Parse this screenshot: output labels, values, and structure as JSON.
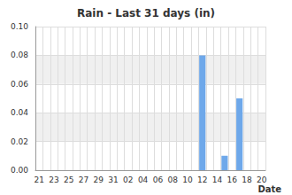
{
  "chart_data": {
    "type": "bar",
    "title": "Rain - Last 31 days (in)",
    "x_label": "Date",
    "categories": [
      "21",
      null,
      "23",
      null,
      "25",
      null,
      "27",
      null,
      "29",
      null,
      "31",
      null,
      "02",
      null,
      "04",
      null,
      "06",
      null,
      "08",
      null,
      "10",
      null,
      "12",
      null,
      "14",
      null,
      "16",
      null,
      "18",
      null,
      "20"
    ],
    "values": [
      0,
      0,
      0,
      0,
      0,
      0,
      0,
      0,
      0,
      0,
      0,
      0,
      0,
      0,
      0,
      0,
      0,
      0,
      0,
      0,
      0,
      0,
      0.08,
      0,
      0,
      0.01,
      0,
      0.05,
      0,
      0,
      0
    ],
    "color": "#6ea8ea",
    "ylim": [
      0,
      0.1
    ],
    "yticks": [
      {
        "value": 0,
        "label": "0.00"
      },
      {
        "value": 0.02,
        "label": "0.02"
      },
      {
        "value": 0.04,
        "label": "0.04"
      },
      {
        "value": 0.06,
        "label": "0.06"
      },
      {
        "value": 0.08,
        "label": "0.08"
      },
      {
        "value": 0.1,
        "label": "0.10"
      }
    ],
    "grid": true
  }
}
